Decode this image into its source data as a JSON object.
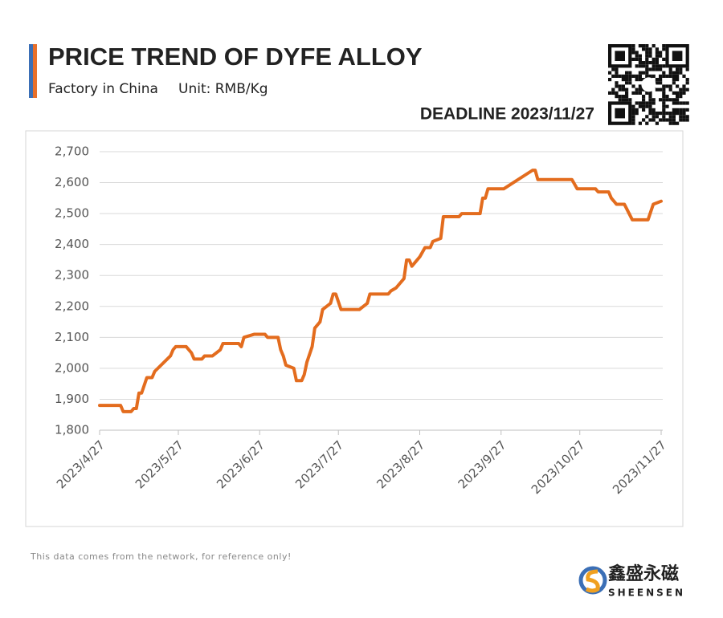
{
  "header": {
    "title": "PRICE TREND OF DYFE ALLOY",
    "subtitle": "Factory in China",
    "unit": "Unit: RMB/Kg",
    "deadline": "DEADLINE 2023/11/27"
  },
  "chart_data": {
    "type": "line",
    "color": "#e36c1e",
    "grid": true,
    "x": [
      "2023/4/27",
      "2023/5/5",
      "2023/5/6",
      "2023/5/9",
      "2023/5/10",
      "2023/5/11",
      "2023/5/12",
      "2023/5/13",
      "2023/5/15",
      "2023/5/17",
      "2023/5/18",
      "2023/5/24",
      "2023/5/25",
      "2023/5/26",
      "2023/5/30",
      "2023/6/1",
      "2023/6/2",
      "2023/6/5",
      "2023/6/6",
      "2023/6/9",
      "2023/6/12",
      "2023/6/13",
      "2023/6/19",
      "2023/6/20",
      "2023/6/21",
      "2023/6/25",
      "2023/6/29",
      "2023/6/30",
      "2023/7/4",
      "2023/7/5",
      "2023/7/6",
      "2023/7/7",
      "2023/7/10",
      "2023/7/11",
      "2023/7/13",
      "2023/7/14",
      "2023/7/15",
      "2023/7/17",
      "2023/7/18",
      "2023/7/20",
      "2023/7/21",
      "2023/7/24",
      "2023/7/25",
      "2023/7/26",
      "2023/7/28",
      "2023/8/4",
      "2023/8/7",
      "2023/8/8",
      "2023/8/15",
      "2023/8/16",
      "2023/8/18",
      "2023/8/21",
      "2023/8/22",
      "2023/8/23",
      "2023/8/24",
      "2023/8/27",
      "2023/8/29",
      "2023/8/31",
      "2023/9/1",
      "2023/9/4",
      "2023/9/5",
      "2023/9/11",
      "2023/9/12",
      "2023/9/19",
      "2023/9/20",
      "2023/9/21",
      "2023/9/22",
      "2023/9/28",
      "2023/10/9",
      "2023/10/10",
      "2023/10/11",
      "2023/10/24",
      "2023/10/26",
      "2023/11/2",
      "2023/11/3",
      "2023/11/7",
      "2023/11/8",
      "2023/11/10",
      "2023/11/13",
      "2023/11/16",
      "2023/11/22",
      "2023/11/24",
      "2023/11/27"
    ],
    "values": [
      1880,
      1880,
      1860,
      1860,
      1870,
      1870,
      1920,
      1920,
      1970,
      1970,
      1990,
      2040,
      2060,
      2070,
      2070,
      2050,
      2030,
      2030,
      2040,
      2040,
      2060,
      2080,
      2080,
      2070,
      2100,
      2110,
      2110,
      2100,
      2100,
      2060,
      2040,
      2010,
      2000,
      1960,
      1960,
      1980,
      2020,
      2070,
      2130,
      2150,
      2190,
      2210,
      2240,
      2240,
      2190,
      2190,
      2210,
      2240,
      2240,
      2250,
      2260,
      2290,
      2350,
      2350,
      2330,
      2360,
      2390,
      2390,
      2410,
      2420,
      2490,
      2490,
      2500,
      2500,
      2550,
      2550,
      2580,
      2580,
      2640,
      2640,
      2610,
      2610,
      2580,
      2580,
      2570,
      2570,
      2550,
      2530,
      2530,
      2480,
      2480,
      2530,
      2540
    ],
    "xlim": [
      "2023/4/27",
      "2023/11/27"
    ],
    "xticks": [
      "2023/4/27",
      "2023/5/27",
      "2023/6/27",
      "2023/7/27",
      "2023/8/27",
      "2023/9/27",
      "2023/10/27",
      "2023/11/27"
    ],
    "ylim": [
      1800,
      2700
    ],
    "yticks": [
      {
        "value": 1800,
        "label": "1,800"
      },
      {
        "value": 1900,
        "label": "1,900"
      },
      {
        "value": 2000,
        "label": "2,000"
      },
      {
        "value": 2100,
        "label": "2,100"
      },
      {
        "value": 2200,
        "label": "2,200"
      },
      {
        "value": 2300,
        "label": "2,300"
      },
      {
        "value": 2400,
        "label": "2,400"
      },
      {
        "value": 2500,
        "label": "2,500"
      },
      {
        "value": 2600,
        "label": "2,600"
      },
      {
        "value": 2700,
        "label": "2,700"
      }
    ]
  },
  "footer": {
    "note": "This data comes from the network, for reference only!",
    "brand_cn": "鑫盛永磁",
    "brand_en": "SHEENSEN"
  }
}
